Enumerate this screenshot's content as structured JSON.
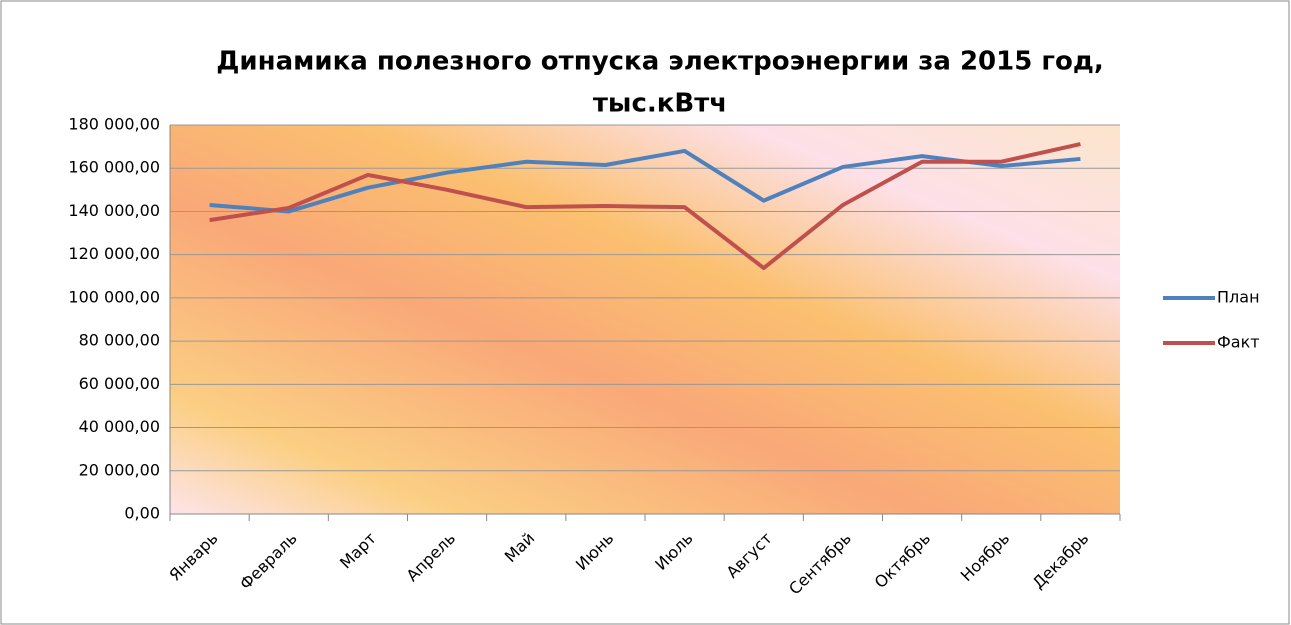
{
  "chart_data": {
    "type": "line",
    "title": [
      "Динамика полезного отпуска электроэнергии за 2015 год,",
      "тыс.кВтч"
    ],
    "categories": [
      "Январь",
      "Февраль",
      "Март",
      "Апрель",
      "Май",
      "Июнь",
      "Июль",
      "Август",
      "Сентябрь",
      "Октябрь",
      "Ноябрь",
      "Декабрь"
    ],
    "series": [
      {
        "name": "План",
        "color": "#4f81bd",
        "values": [
          143000,
          140000,
          151000,
          158000,
          163000,
          161500,
          168000,
          145000,
          160600,
          165600,
          161000,
          164300
        ]
      },
      {
        "name": "Факт",
        "color": "#c0504d",
        "values": [
          136000,
          141600,
          156900,
          150000,
          142000,
          142500,
          142000,
          113800,
          143000,
          163000,
          163000,
          171200
        ]
      }
    ],
    "ylim": [
      0,
      180000
    ],
    "yticks": [
      {
        "value": 0,
        "label": "0,00"
      },
      {
        "value": 20000,
        "label": "20 000,00"
      },
      {
        "value": 40000,
        "label": "40 000,00"
      },
      {
        "value": 60000,
        "label": "60 000,00"
      },
      {
        "value": 80000,
        "label": "80 000,00"
      },
      {
        "value": 100000,
        "label": "100 000,00"
      },
      {
        "value": 120000,
        "label": "120 000,00"
      },
      {
        "value": 140000,
        "label": "140 000,00"
      },
      {
        "value": 160000,
        "label": "160 000,00"
      },
      {
        "value": 180000,
        "label": "180 000,00"
      }
    ],
    "grid": true,
    "legend": "right"
  }
}
